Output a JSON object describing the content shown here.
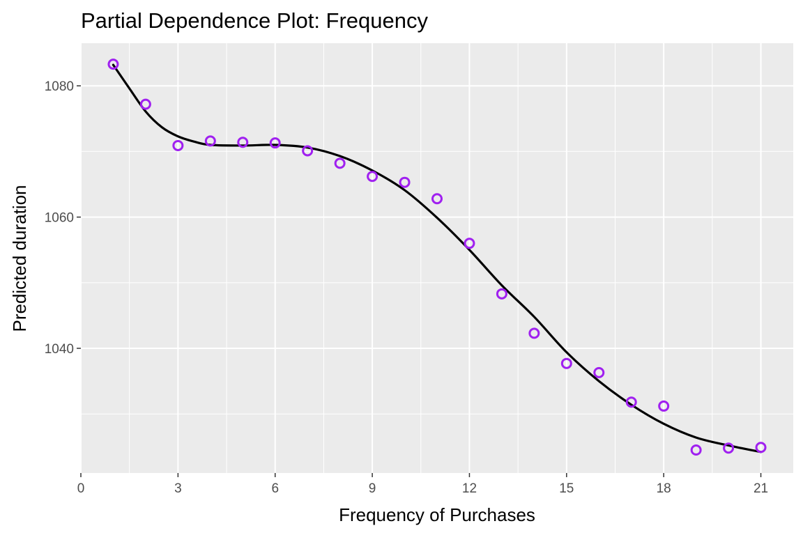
{
  "chart_data": {
    "type": "scatter",
    "title": "Partial Dependence Plot: Frequency",
    "xlabel": "Frequency of Purchases",
    "ylabel": "Predicted duration",
    "xlim": [
      0,
      22.0
    ],
    "ylim": [
      1021.0,
      1086.5
    ],
    "x_ticks": [
      0,
      3,
      6,
      9,
      12,
      15,
      18,
      21
    ],
    "y_ticks": [
      1040,
      1060,
      1080
    ],
    "grid": true,
    "legend": "none",
    "points": {
      "x": [
        1,
        2,
        3,
        4,
        5,
        6,
        7,
        8,
        9,
        10,
        11,
        12,
        13,
        14,
        15,
        16,
        17,
        18,
        19,
        20,
        21
      ],
      "y": [
        1083.3,
        1077.2,
        1070.9,
        1071.6,
        1071.4,
        1071.3,
        1070.1,
        1068.2,
        1066.2,
        1065.3,
        1062.8,
        1056.0,
        1048.3,
        1042.3,
        1037.7,
        1036.3,
        1031.8,
        1031.2,
        1024.5,
        1024.8,
        1024.9
      ],
      "color": "#a020f0"
    },
    "smooth": {
      "x": [
        1,
        1.5,
        2,
        2.5,
        3,
        3.5,
        4,
        5,
        6,
        7,
        8,
        9,
        10,
        11,
        12,
        13,
        14,
        15,
        16,
        17,
        18,
        19,
        20,
        21
      ],
      "y": [
        1083.2,
        1079.6,
        1076.1,
        1073.7,
        1072.3,
        1071.5,
        1071.0,
        1070.9,
        1071.0,
        1070.6,
        1069.3,
        1067.1,
        1064.1,
        1059.9,
        1055.0,
        1049.6,
        1044.8,
        1039.4,
        1035.0,
        1031.4,
        1028.5,
        1026.4,
        1025.2,
        1024.2
      ],
      "color": "#000000"
    }
  }
}
